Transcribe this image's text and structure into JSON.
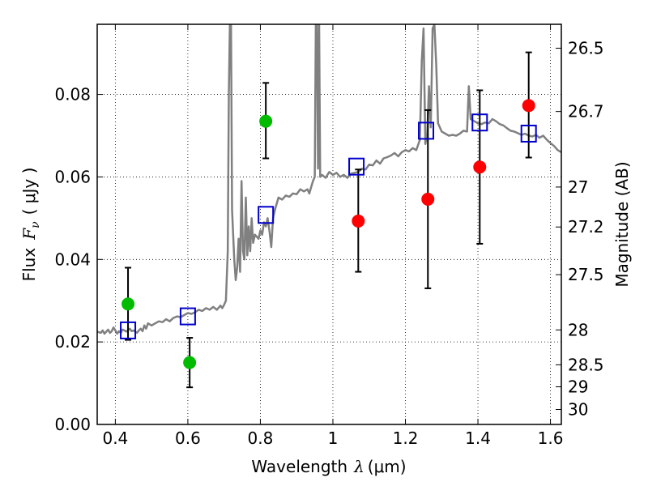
{
  "chart_data": {
    "type": "scatter",
    "xlabel": "Wavelength  λ (μm)",
    "ylabel": "Flux  F_ν  ( μJy )",
    "ylabel_parts": {
      "flux": "Flux",
      "symbol": "F",
      "sub": "ν",
      "unit": "( μJy )"
    },
    "xlabel_parts": {
      "word": "Wavelength",
      "lambda": "λ",
      "unit": "(μm)"
    },
    "y2label": "Magnitude (AB)",
    "xlim": [
      0.35,
      1.63
    ],
    "ylim": [
      0.0,
      0.097
    ],
    "grid": true,
    "x_ticks": [
      {
        "value": 0.4,
        "label": "0.4"
      },
      {
        "value": 0.6,
        "label": "0.6"
      },
      {
        "value": 0.8,
        "label": "0.8"
      },
      {
        "value": 1.0,
        "label": "1"
      },
      {
        "value": 1.2,
        "label": "1.2"
      },
      {
        "value": 1.4,
        "label": "1.4"
      },
      {
        "value": 1.6,
        "label": "1.6"
      }
    ],
    "y_ticks": [
      {
        "value": 0.0,
        "label": "0.00"
      },
      {
        "value": 0.02,
        "label": "0.02"
      },
      {
        "value": 0.04,
        "label": "0.04"
      },
      {
        "value": 0.06,
        "label": "0.06"
      },
      {
        "value": 0.08,
        "label": "0.08"
      }
    ],
    "y2_ticks": [
      {
        "mag": 26.5,
        "label": "26.5"
      },
      {
        "mag": 26.7,
        "label": "26.7"
      },
      {
        "mag": 27.0,
        "label": "27"
      },
      {
        "mag": 27.2,
        "label": "27.2"
      },
      {
        "mag": 27.5,
        "label": "27.5"
      },
      {
        "mag": 28.0,
        "label": "28"
      },
      {
        "mag": 28.5,
        "label": "28.5"
      },
      {
        "mag": 29.0,
        "label": "29"
      },
      {
        "mag": 30.0,
        "label": "30"
      }
    ],
    "series": [
      {
        "kind": "line",
        "color": "#808080",
        "points": [
          [
            0.35,
            0.0225
          ],
          [
            0.36,
            0.0222
          ],
          [
            0.365,
            0.0228
          ],
          [
            0.37,
            0.022
          ],
          [
            0.375,
            0.0225
          ],
          [
            0.38,
            0.023
          ],
          [
            0.385,
            0.0222
          ],
          [
            0.39,
            0.0226
          ],
          [
            0.395,
            0.0235
          ],
          [
            0.4,
            0.0228
          ],
          [
            0.405,
            0.022
          ],
          [
            0.41,
            0.0226
          ],
          [
            0.415,
            0.0222
          ],
          [
            0.42,
            0.023
          ],
          [
            0.425,
            0.0228
          ],
          [
            0.43,
            0.0225
          ],
          [
            0.44,
            0.0232
          ],
          [
            0.445,
            0.0226
          ],
          [
            0.45,
            0.0228
          ],
          [
            0.46,
            0.0222
          ],
          [
            0.465,
            0.0228
          ],
          [
            0.47,
            0.0232
          ],
          [
            0.475,
            0.0226
          ],
          [
            0.48,
            0.024
          ],
          [
            0.485,
            0.0232
          ],
          [
            0.49,
            0.0245
          ],
          [
            0.5,
            0.024
          ],
          [
            0.51,
            0.0245
          ],
          [
            0.52,
            0.025
          ],
          [
            0.53,
            0.0248
          ],
          [
            0.54,
            0.0255
          ],
          [
            0.55,
            0.025
          ],
          [
            0.56,
            0.0258
          ],
          [
            0.57,
            0.0262
          ],
          [
            0.58,
            0.026
          ],
          [
            0.59,
            0.0265
          ],
          [
            0.6,
            0.027
          ],
          [
            0.61,
            0.0268
          ],
          [
            0.62,
            0.0272
          ],
          [
            0.63,
            0.0278
          ],
          [
            0.64,
            0.0275
          ],
          [
            0.65,
            0.0282
          ],
          [
            0.66,
            0.0278
          ],
          [
            0.67,
            0.0285
          ],
          [
            0.68,
            0.0278
          ],
          [
            0.69,
            0.0288
          ],
          [
            0.695,
            0.0282
          ],
          [
            0.7,
            0.029
          ],
          [
            0.705,
            0.03
          ],
          [
            0.71,
            0.042
          ],
          [
            0.713,
            0.08
          ],
          [
            0.716,
            0.097
          ],
          [
            0.719,
            0.097
          ],
          [
            0.722,
            0.052
          ],
          [
            0.728,
            0.04
          ],
          [
            0.732,
            0.035
          ],
          [
            0.736,
            0.038
          ],
          [
            0.74,
            0.045
          ],
          [
            0.744,
            0.037
          ],
          [
            0.748,
            0.059
          ],
          [
            0.752,
            0.042
          ],
          [
            0.756,
            0.04
          ],
          [
            0.76,
            0.055
          ],
          [
            0.764,
            0.041
          ],
          [
            0.768,
            0.048
          ],
          [
            0.772,
            0.042
          ],
          [
            0.776,
            0.05
          ],
          [
            0.78,
            0.044
          ],
          [
            0.785,
            0.046
          ],
          [
            0.79,
            0.0455
          ],
          [
            0.795,
            0.045
          ],
          [
            0.8,
            0.047
          ],
          [
            0.805,
            0.046
          ],
          [
            0.81,
            0.049
          ],
          [
            0.815,
            0.048
          ],
          [
            0.82,
            0.05
          ],
          [
            0.825,
            0.047
          ],
          [
            0.83,
            0.043
          ],
          [
            0.835,
            0.05
          ],
          [
            0.84,
            0.052
          ],
          [
            0.845,
            0.0535
          ],
          [
            0.85,
            0.055
          ],
          [
            0.86,
            0.0545
          ],
          [
            0.87,
            0.0555
          ],
          [
            0.88,
            0.0552
          ],
          [
            0.89,
            0.056
          ],
          [
            0.9,
            0.0558
          ],
          [
            0.91,
            0.057
          ],
          [
            0.92,
            0.0565
          ],
          [
            0.93,
            0.057
          ],
          [
            0.935,
            0.056
          ],
          [
            0.94,
            0.0575
          ],
          [
            0.945,
            0.059
          ],
          [
            0.95,
            0.06
          ],
          [
            0.953,
            0.097
          ],
          [
            0.956,
            0.097
          ],
          [
            0.959,
            0.062
          ],
          [
            0.962,
            0.097
          ],
          [
            0.965,
            0.06
          ],
          [
            0.97,
            0.0605
          ],
          [
            0.98,
            0.0598
          ],
          [
            0.99,
            0.0612
          ],
          [
            1.0,
            0.0605
          ],
          [
            1.01,
            0.061
          ],
          [
            1.02,
            0.06
          ],
          [
            1.03,
            0.0605
          ],
          [
            1.04,
            0.0598
          ],
          [
            1.05,
            0.0608
          ],
          [
            1.06,
            0.061
          ],
          [
            1.07,
            0.0612
          ],
          [
            1.08,
            0.062
          ],
          [
            1.09,
            0.0618
          ],
          [
            1.1,
            0.063
          ],
          [
            1.11,
            0.0628
          ],
          [
            1.12,
            0.064
          ],
          [
            1.13,
            0.0632
          ],
          [
            1.14,
            0.0645
          ],
          [
            1.15,
            0.0648
          ],
          [
            1.16,
            0.0652
          ],
          [
            1.17,
            0.0658
          ],
          [
            1.18,
            0.065
          ],
          [
            1.19,
            0.066
          ],
          [
            1.2,
            0.0665
          ],
          [
            1.21,
            0.0662
          ],
          [
            1.22,
            0.067
          ],
          [
            1.23,
            0.0665
          ],
          [
            1.24,
            0.069
          ],
          [
            1.245,
            0.088
          ],
          [
            1.25,
            0.096
          ],
          [
            1.255,
            0.068
          ],
          [
            1.26,
            0.07
          ],
          [
            1.265,
            0.082
          ],
          [
            1.27,
            0.072
          ],
          [
            1.275,
            0.096
          ],
          [
            1.28,
            0.097
          ],
          [
            1.285,
            0.087
          ],
          [
            1.29,
            0.073
          ],
          [
            1.3,
            0.071
          ],
          [
            1.31,
            0.0705
          ],
          [
            1.32,
            0.07
          ],
          [
            1.33,
            0.0702
          ],
          [
            1.34,
            0.07
          ],
          [
            1.35,
            0.0705
          ],
          [
            1.36,
            0.0712
          ],
          [
            1.37,
            0.071
          ],
          [
            1.375,
            0.082
          ],
          [
            1.38,
            0.074
          ],
          [
            1.39,
            0.0735
          ],
          [
            1.4,
            0.073
          ],
          [
            1.41,
            0.0728
          ],
          [
            1.42,
            0.0732
          ],
          [
            1.43,
            0.073
          ],
          [
            1.44,
            0.074
          ],
          [
            1.45,
            0.0735
          ],
          [
            1.46,
            0.0728
          ],
          [
            1.47,
            0.0725
          ],
          [
            1.48,
            0.0718
          ],
          [
            1.49,
            0.0712
          ],
          [
            1.5,
            0.071
          ],
          [
            1.51,
            0.0706
          ],
          [
            1.52,
            0.0702
          ],
          [
            1.53,
            0.0705
          ],
          [
            1.54,
            0.07
          ],
          [
            1.55,
            0.0698
          ],
          [
            1.56,
            0.0702
          ],
          [
            1.57,
            0.0695
          ],
          [
            1.58,
            0.07
          ],
          [
            1.59,
            0.069
          ],
          [
            1.6,
            0.0682
          ],
          [
            1.61,
            0.0675
          ],
          [
            1.62,
            0.0665
          ],
          [
            1.63,
            0.066
          ]
        ]
      },
      {
        "kind": "marker-square",
        "color": "#0000cc",
        "points": [
          [
            0.435,
            0.0228
          ],
          [
            0.6,
            0.0262
          ],
          [
            0.815,
            0.0508
          ],
          [
            1.065,
            0.0625
          ],
          [
            1.257,
            0.0712
          ],
          [
            1.405,
            0.0732
          ],
          [
            1.54,
            0.0705
          ]
        ]
      },
      {
        "kind": "marker-circle",
        "color": "#00bb00",
        "points": [
          {
            "x": 0.435,
            "y": 0.0292,
            "low": 0.0205,
            "high": 0.038
          },
          {
            "x": 0.605,
            "y": 0.015,
            "low": 0.009,
            "high": 0.021
          },
          {
            "x": 0.815,
            "y": 0.0735,
            "low": 0.0645,
            "high": 0.0828
          }
        ]
      },
      {
        "kind": "marker-circle",
        "color": "#ff0000",
        "points": [
          {
            "x": 1.07,
            "y": 0.0493,
            "low": 0.037,
            "high": 0.0618
          },
          {
            "x": 1.262,
            "y": 0.0546,
            "low": 0.033,
            "high": 0.0762
          },
          {
            "x": 1.405,
            "y": 0.0624,
            "low": 0.0438,
            "high": 0.081
          },
          {
            "x": 1.54,
            "y": 0.0773,
            "low": 0.0647,
            "high": 0.0902
          }
        ]
      }
    ]
  }
}
